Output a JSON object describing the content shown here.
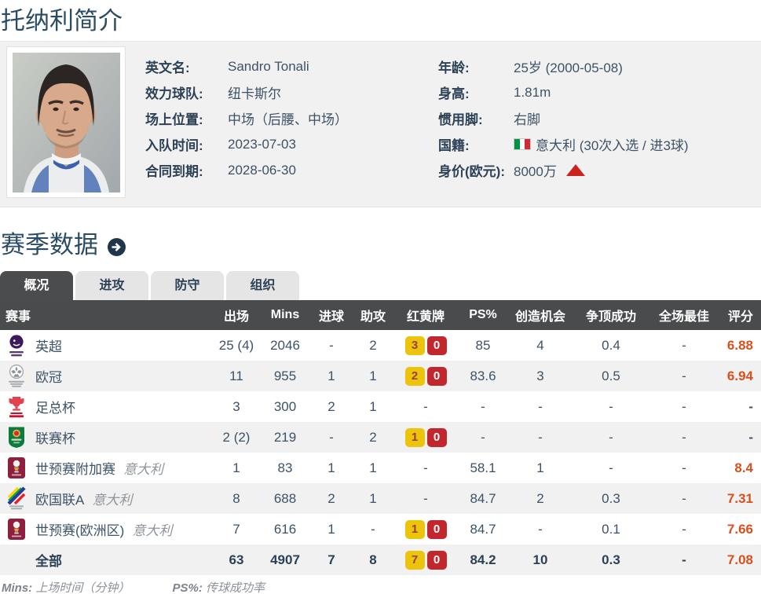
{
  "page": {
    "title": "托纳利简介",
    "section_title": "赛季数据"
  },
  "profile": {
    "left": [
      {
        "key": "english-name",
        "label": "英文名:",
        "value": "Sandro Tonali"
      },
      {
        "key": "club",
        "label": "效力球队:",
        "value": "纽卡斯尔"
      },
      {
        "key": "position",
        "label": "场上位置:",
        "value": "中场（后腰、中场）"
      },
      {
        "key": "join-date",
        "label": "入队时间:",
        "value": "2023-07-03"
      },
      {
        "key": "contract-until",
        "label": "合同到期:",
        "value": "2028-06-30"
      }
    ],
    "right": [
      {
        "key": "age",
        "label": "年龄:",
        "value": "25岁  (2000-05-08)"
      },
      {
        "key": "height",
        "label": "身高:",
        "value": "1.81m"
      },
      {
        "key": "preferred-foot",
        "label": "惯用脚:",
        "value": "右脚"
      },
      {
        "key": "nationality",
        "label": "国籍:",
        "value": "意大利 (30次入选 / 进3球)",
        "flag": "italy"
      },
      {
        "key": "market-value",
        "label": "身价(欧元):",
        "value": "8000万",
        "trend": "up"
      }
    ]
  },
  "tabs": [
    {
      "key": "overview",
      "label": "概况",
      "active": true
    },
    {
      "key": "attack",
      "label": "进攻",
      "active": false
    },
    {
      "key": "defense",
      "label": "防守",
      "active": false
    },
    {
      "key": "organize",
      "label": "组织",
      "active": false
    }
  ],
  "table": {
    "headers": [
      "赛事",
      "出场",
      "Mins",
      "进球",
      "助攻",
      "红黄牌",
      "PS%",
      "创造机会",
      "争顶成功",
      "全场最佳",
      "评分"
    ],
    "rows": [
      {
        "icon": "premier-league",
        "competition": "英超",
        "note": "",
        "apps": "25 (4)",
        "mins": "2046",
        "goals": "-",
        "assists": "2",
        "yellow": "3",
        "red": "0",
        "ps": "85",
        "chances": "4",
        "aerials": "0.4",
        "motm": "-",
        "rating": "6.88",
        "total": false
      },
      {
        "icon": "champions-league",
        "competition": "欧冠",
        "note": "",
        "apps": "11",
        "mins": "955",
        "goals": "1",
        "assists": "1",
        "yellow": "2",
        "red": "0",
        "ps": "83.6",
        "chances": "3",
        "aerials": "0.5",
        "motm": "-",
        "rating": "6.94",
        "total": false
      },
      {
        "icon": "fa-cup",
        "competition": "足总杯",
        "note": "",
        "apps": "3",
        "mins": "300",
        "goals": "2",
        "assists": "1",
        "yellow": null,
        "red": null,
        "ps": "-",
        "chances": "-",
        "aerials": "-",
        "motm": "-",
        "rating": "-",
        "total": false
      },
      {
        "icon": "league-cup",
        "competition": "联赛杯",
        "note": "",
        "apps": "2 (2)",
        "mins": "219",
        "goals": "-",
        "assists": "2",
        "yellow": "1",
        "red": "0",
        "ps": "-",
        "chances": "-",
        "aerials": "-",
        "motm": "-",
        "rating": "-",
        "total": false
      },
      {
        "icon": "wc-qualifiers",
        "competition": "世预赛附加赛",
        "note": "意大利",
        "apps": "1",
        "mins": "83",
        "goals": "1",
        "assists": "1",
        "yellow": null,
        "red": null,
        "ps": "58.1",
        "chances": "1",
        "aerials": "-",
        "motm": "-",
        "rating": "8.4",
        "total": false
      },
      {
        "icon": "nations-league",
        "competition": "欧国联A",
        "note": "意大利",
        "apps": "8",
        "mins": "688",
        "goals": "2",
        "assists": "1",
        "yellow": null,
        "red": null,
        "ps": "84.7",
        "chances": "2",
        "aerials": "0.3",
        "motm": "-",
        "rating": "7.31",
        "total": false
      },
      {
        "icon": "wc-qualifiers",
        "competition": "世预赛(欧洲区)",
        "note": "意大利",
        "apps": "7",
        "mins": "616",
        "goals": "1",
        "assists": "-",
        "yellow": "1",
        "red": "0",
        "ps": "84.7",
        "chances": "-",
        "aerials": "0.1",
        "motm": "-",
        "rating": "7.66",
        "total": false
      },
      {
        "icon": "none",
        "competition": "全部",
        "note": "",
        "apps": "63",
        "mins": "4907",
        "goals": "7",
        "assists": "8",
        "yellow": "7",
        "red": "0",
        "ps": "84.2",
        "chances": "10",
        "aerials": "0.3",
        "motm": "-",
        "rating": "7.08",
        "total": true
      }
    ]
  },
  "footnote": {
    "mins_label": "Mins:",
    "mins_text": "上场时间（分钟）",
    "ps_label": "PS%:",
    "ps_text": "传球成功率"
  },
  "colors": {
    "rating": "#d8501e",
    "yellow_card": "#edc40c",
    "red_card": "#c2272d",
    "header_bg": "#4a4b4d",
    "title": "#2b4c66"
  }
}
